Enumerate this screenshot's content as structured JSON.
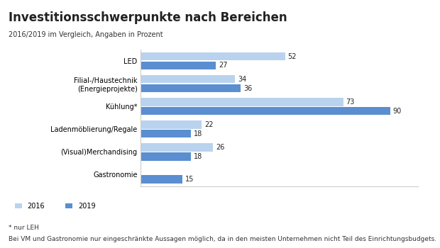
{
  "chart_data": {
    "type": "bar",
    "orientation": "horizontal",
    "title": "Investitionsschwerpunkte nach Bereichen",
    "subtitle": "2016/2019 im Vergleich, Angaben in Prozent",
    "categories": [
      "LED",
      "Filial-/Haustechnik\n(Energieprojekte)",
      "Kühlung*",
      "Ladenmöblierung/Regale",
      "(Visual)Merchandising",
      "Gastronomie"
    ],
    "series": [
      {
        "name": "2016",
        "color": "#b9d3ee",
        "values": [
          52,
          34,
          73,
          22,
          26,
          null
        ]
      },
      {
        "name": "2019",
        "color": "#5a8ed0",
        "values": [
          27,
          36,
          90,
          18,
          18,
          15
        ]
      }
    ],
    "xlim": [
      0,
      100
    ],
    "data_labels": true,
    "tick_labels": "y",
    "legend": "lower left",
    "annotations": [
      "* nur LEH",
      "Bei VM und Gastronomie nur eingeschränkte Aussagen möglich, da in den meisten Unternehmen nicht Teil des Einrichtungsbudgets."
    ]
  }
}
